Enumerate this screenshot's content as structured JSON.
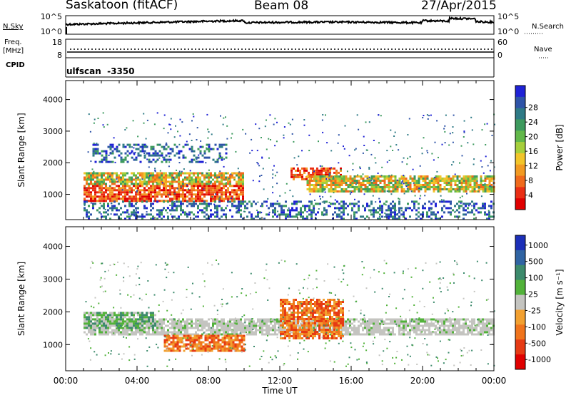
{
  "header": {
    "station": "Saskatoon (fitACF)",
    "beam": "Beam 08",
    "date": "27/Apr/2015"
  },
  "panels": {
    "noise_left_label": "N.Sky",
    "noise_right_label": "N.Search",
    "noise_left_ticks": [
      "10^5",
      "10^0"
    ],
    "noise_right_ticks": [
      "10^5",
      "10^0"
    ],
    "freq_label_line1": "Freq.",
    "freq_label_line2": "[MHz]",
    "freq_ticks": [
      "18",
      "8"
    ],
    "nave_label": "Nave",
    "nave_ticks": [
      "60",
      "0"
    ],
    "cpid_label": "CPID",
    "cpid_value": "ulfscan  -3350"
  },
  "chart_data": [
    {
      "type": "heatmap",
      "title": "",
      "ylabel": "Slant Range [km]",
      "xlabel": "",
      "y_ticks": [
        "1000",
        "2000",
        "3000",
        "4000"
      ],
      "ylim": [
        200,
        4600
      ],
      "colorbar": {
        "label": "Power [dB]",
        "ticks": [
          "4",
          "8",
          "12",
          "16",
          "20",
          "24",
          "28"
        ],
        "colors": [
          "#1f22d6",
          "#2e54a8",
          "#2e7a86",
          "#3d9a5e",
          "#62b84a",
          "#a6cf3c",
          "#f2c52a",
          "#f29a22",
          "#f06a1c",
          "#ea2e14",
          "#e00000"
        ]
      },
      "bands": [
        {
          "x0": 1.0,
          "x1": 10.0,
          "y0": 800,
          "y1": 1300,
          "level": "high"
        },
        {
          "x0": 1.0,
          "x1": 10.0,
          "y0": 1300,
          "y1": 1700,
          "level": "mid"
        },
        {
          "x0": 12.6,
          "x1": 15.4,
          "y0": 1450,
          "y1": 1850,
          "level": "high"
        },
        {
          "x0": 13.5,
          "x1": 24.0,
          "y0": 1100,
          "y1": 1600,
          "level": "mid"
        },
        {
          "x0": 1.5,
          "x1": 9.0,
          "y0": 2000,
          "y1": 2600,
          "level": "low"
        },
        {
          "x0": 1.0,
          "x1": 24.0,
          "y0": 250,
          "y1": 800,
          "level": "low"
        }
      ]
    },
    {
      "type": "heatmap",
      "title": "",
      "ylabel": "Slant Range [km]",
      "xlabel": "Time UT",
      "x_ticks": [
        "00:00",
        "04:00",
        "08:00",
        "12:00",
        "16:00",
        "20:00",
        "00:00"
      ],
      "y_ticks": [
        "1000",
        "2000",
        "3000",
        "4000"
      ],
      "ylim": [
        200,
        4600
      ],
      "colorbar": {
        "label": "Velocity [m s⁻¹]",
        "ticks": [
          "1000",
          "500",
          "100",
          "25",
          "-25",
          "-100",
          "-500",
          "-1000"
        ],
        "colors": [
          "#1c2fb8",
          "#3064a3",
          "#3c8a6c",
          "#52b23a",
          "#c4c4c0",
          "#f2a030",
          "#f0741c",
          "#e63a14",
          "#e00000"
        ]
      },
      "bands": [
        {
          "x0": 1.0,
          "x1": 24.0,
          "y0": 1300,
          "y1": 1800,
          "level": "zero"
        },
        {
          "x0": 5.5,
          "x1": 10.0,
          "y0": 800,
          "y1": 1300,
          "level": "neg"
        },
        {
          "x0": 12.0,
          "x1": 15.5,
          "y0": 1200,
          "y1": 2400,
          "level": "neg"
        },
        {
          "x0": 1.0,
          "x1": 5.0,
          "y0": 1500,
          "y1": 2000,
          "level": "pos"
        }
      ]
    }
  ]
}
